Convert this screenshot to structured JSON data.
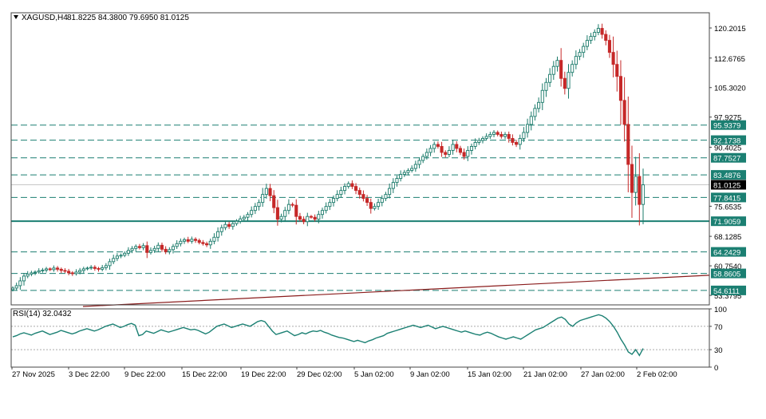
{
  "header": {
    "symbol": "XAGUSD,H4",
    "ohlc": "81.8225 84.3800 79.6950 81.0125"
  },
  "colors": {
    "bull": "#1a7a6a",
    "bear": "#c62828",
    "level": "#1b7f72",
    "trendline": "#8a1c1c",
    "rsi": "#1b8073",
    "current_price_bg": "#000000"
  },
  "chart_data": [
    {
      "type": "candlestick",
      "title": "XAGUSD,H4",
      "ylim": [
        51.0,
        124.0
      ],
      "y_ticks": [
        "120.2015",
        "112.6765",
        "105.3020",
        "97.9275",
        "90.4025",
        "75.6535",
        "68.1285",
        "60.7540",
        "53.3795"
      ],
      "x_ticks": [
        "27 Nov 2025",
        "3 Dec 22:00",
        "9 Dec 22:00",
        "15 Dec 22:00",
        "19 Dec 22:00",
        "29 Dec 02:00",
        "5 Jan 02:00",
        "9 Jan 02:00",
        "15 Jan 02:00",
        "21 Jan 02:00",
        "27 Jan 02:00",
        "2 Feb 02:00"
      ],
      "closes": [
        55.2,
        55.8,
        57.0,
        58.2,
        58.7,
        59.0,
        59.2,
        59.5,
        59.7,
        60.0,
        59.8,
        60.2,
        59.9,
        59.6,
        59.4,
        59.0,
        58.8,
        59.2,
        59.6,
        60.0,
        60.2,
        60.4,
        60.1,
        59.9,
        60.3,
        60.8,
        61.8,
        62.6,
        63.2,
        63.4,
        63.9,
        64.6,
        65.1,
        65.6,
        65.3,
        65.8,
        64.1,
        64.6,
        65.1,
        65.9,
        64.9,
        64.3,
        64.8,
        65.6,
        66.3,
        66.9,
        67.3,
        66.9,
        67.4,
        67.1,
        66.6,
        66.3,
        66.0,
        66.9,
        67.9,
        69.3,
        70.3,
        71.1,
        70.6,
        71.3,
        71.9,
        72.5,
        72.9,
        73.6,
        74.6,
        75.6,
        76.6,
        78.6,
        80.1,
        78.3,
        75.3,
        72.4,
        73.1,
        74.6,
        76.1,
        75.9,
        73.1,
        72.4,
        71.8,
        73.1,
        72.9,
        72.4,
        73.6,
        74.6,
        75.6,
        76.6,
        77.6,
        78.6,
        79.6,
        80.6,
        81.3,
        80.6,
        79.6,
        78.6,
        77.6,
        76.6,
        75.1,
        75.6,
        76.6,
        77.6,
        78.6,
        80.1,
        81.6,
        82.6,
        83.6,
        84.1,
        84.6,
        85.1,
        86.1,
        87.1,
        88.1,
        89.1,
        90.1,
        91.1,
        90.6,
        89.1,
        88.6,
        89.6,
        91.1,
        90.1,
        89.1,
        88.1,
        89.6,
        90.6,
        91.6,
        92.1,
        92.6,
        93.1,
        93.6,
        94.1,
        93.6,
        93.1,
        93.6,
        92.6,
        91.6,
        91.1,
        92.6,
        94.1,
        96.1,
        98.1,
        100.1,
        101.6,
        104.6,
        106.6,
        108.6,
        110.6,
        112.1,
        107.6,
        105.1,
        109.1,
        111.1,
        113.1,
        114.1,
        115.6,
        117.1,
        118.1,
        119.1,
        120.1,
        118.6,
        117.1,
        114.1,
        111.1,
        108.1,
        102.1,
        96.1,
        86.1,
        79.1,
        83.1,
        76.1,
        81.0
      ],
      "levels": [
        "95.9379",
        "92.1738",
        "87.7527",
        "83.4876",
        "77.8415",
        "71.9059",
        "64.2429",
        "58.8605",
        "54.6111"
      ],
      "current_price": "81.0125",
      "trendline": {
        "from": [
          0,
          50.6
        ],
        "to": [
          178,
          58.4
        ]
      }
    },
    {
      "type": "line",
      "title": "RSI(14) 32.0432",
      "series": [
        {
          "name": "RSI(14)",
          "values": [
            52,
            54,
            57,
            59,
            57,
            55,
            58,
            60,
            62,
            59,
            56,
            58,
            60,
            63,
            61,
            59,
            57,
            59,
            62,
            64,
            66,
            64,
            62,
            64,
            67,
            70,
            72,
            74,
            71,
            68,
            70,
            73,
            75,
            72,
            54,
            56,
            62,
            60,
            58,
            61,
            64,
            62,
            60,
            62,
            64,
            66,
            68,
            66,
            64,
            65,
            63,
            60,
            57,
            60,
            65,
            70,
            72,
            74,
            71,
            68,
            70,
            72,
            74,
            72,
            70,
            74,
            78,
            80,
            78,
            70,
            62,
            56,
            58,
            60,
            62,
            58,
            54,
            56,
            59,
            57,
            60,
            62,
            61,
            63,
            60,
            58,
            55,
            53,
            51,
            50,
            48,
            46,
            44,
            46,
            44,
            42,
            45,
            47,
            50,
            52,
            54,
            58,
            60,
            62,
            64,
            66,
            68,
            70,
            72,
            70,
            68,
            70,
            72,
            69,
            66,
            68,
            70,
            68,
            66,
            64,
            62,
            60,
            62,
            60,
            58,
            56,
            55,
            58,
            60,
            58,
            55,
            52,
            50,
            48,
            50,
            52,
            50,
            48,
            52,
            56,
            60,
            64,
            66,
            68,
            72,
            76,
            80,
            84,
            86,
            82,
            74,
            70,
            76,
            80,
            82,
            84,
            86,
            88,
            90,
            88,
            84,
            78,
            70,
            60,
            48,
            38,
            26,
            22,
            30,
            20,
            32
          ]
        }
      ],
      "ylim": [
        0,
        100
      ],
      "y_ticks": [
        "100",
        "70",
        "30",
        "0"
      ]
    }
  ]
}
